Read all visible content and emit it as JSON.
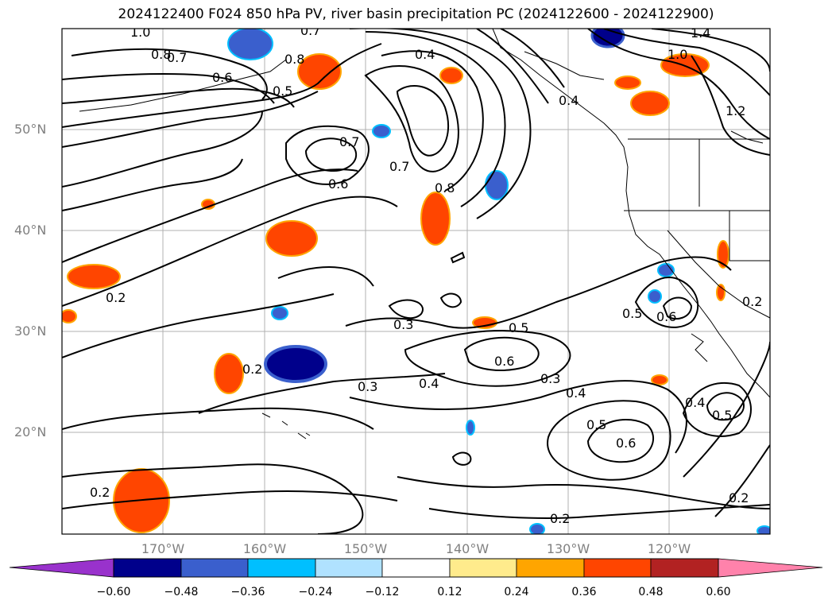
{
  "title": "2024122400 F024 850 hPa PV, river basin precipitation PC (2024122600 - 2024122900)",
  "lat_labels": [
    "50°N",
    "40°N",
    "30°N",
    "20°N"
  ],
  "lon_labels": [
    "170°W",
    "160°W",
    "150°W",
    "140°W",
    "130°W",
    "120°W"
  ],
  "contour_labels": [
    "1.0",
    "0.8",
    "0.7",
    "0.8",
    "0.7",
    "0.6",
    "0.5",
    "0.4",
    "1.4",
    "1.0",
    "1.2",
    "0.4",
    "0.7",
    "0.7",
    "0.6",
    "0.8",
    "0.2",
    "0.2",
    "0.3",
    "0.3",
    "0.5",
    "0.6",
    "0.4",
    "0.3",
    "0.4",
    "0.5",
    "0.6",
    "0.5",
    "0.6",
    "0.4",
    "0.5",
    "0.2",
    "0.2",
    "0.2",
    "0.2"
  ],
  "colorbar": {
    "ticks": [
      "−0.60",
      "−0.48",
      "−0.36",
      "−0.24",
      "−0.12",
      "0.12",
      "0.24",
      "0.36",
      "0.48",
      "0.60"
    ],
    "colors": [
      "#9932cc",
      "#00008b",
      "#3a5fcd",
      "#00bfff",
      "#b0e2ff",
      "#ffffff",
      "#ffeb8c",
      "#ffa500",
      "#ff4500",
      "#b22222",
      "#ff82ab",
      "#ff82ab"
    ]
  },
  "colors": {
    "positive_anomaly": "#ff4500",
    "negative_anomaly": "#00008b",
    "grid": "#b0b0b0",
    "axis_label": "#808080"
  }
}
